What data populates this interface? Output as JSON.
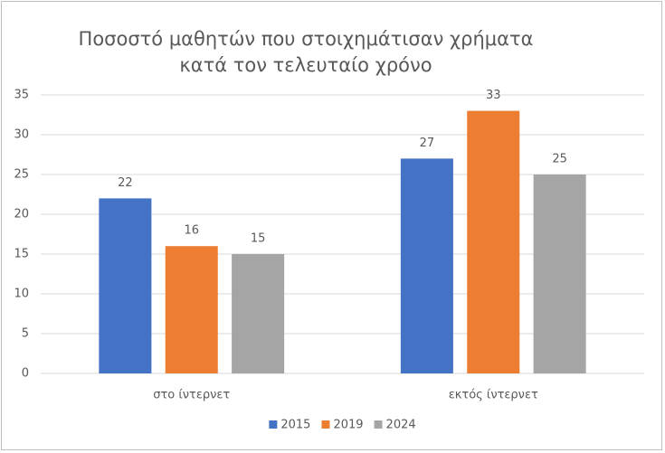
{
  "chart_data": {
    "type": "bar",
    "title": "Ποσοστό μαθητών που στοιχημάτισαν χρήματα κατά τον τελευταίο χρόνο",
    "categories": [
      "στο ίντερνετ",
      "εκτός ίντερνετ"
    ],
    "series": [
      {
        "name": "2015",
        "color": "#4472c4",
        "values": [
          22,
          27
        ]
      },
      {
        "name": "2019",
        "color": "#ed7d31",
        "values": [
          16,
          33
        ]
      },
      {
        "name": "2024",
        "color": "#a5a5a5",
        "values": [
          15,
          25
        ]
      }
    ],
    "ylim": [
      0,
      35
    ],
    "yticks": [
      0,
      5,
      10,
      15,
      20,
      25,
      30,
      35
    ],
    "grid": true,
    "legend": "bottom"
  }
}
